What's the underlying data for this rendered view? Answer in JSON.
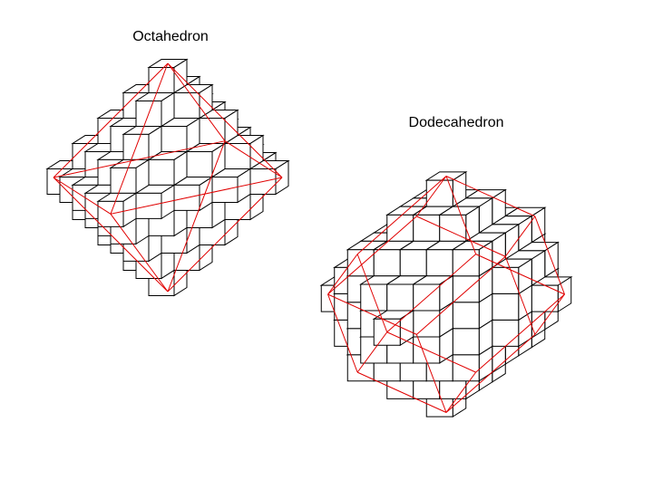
{
  "figures": [
    {
      "id": "octahedron",
      "title": "Octahedron",
      "shape": "octahedron",
      "cube_radius": 4,
      "wireframe_color": "#e00000"
    },
    {
      "id": "dodecahedron",
      "title": "Dodecahedron",
      "shape": "rhombic-dodecahedron",
      "cube_radius": 4,
      "wireframe_color": "#e00000"
    }
  ],
  "colors": {
    "background": "#ffffff",
    "cube_faces": "#ffffff",
    "cube_edges": "#000000"
  }
}
